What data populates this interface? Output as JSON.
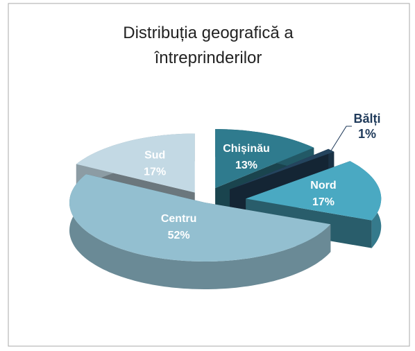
{
  "chart_data": {
    "type": "pie",
    "title": "Distribuția geografică a întreprinderilor",
    "categories": [
      "Chișinău",
      "Bălți",
      "Nord",
      "Centru",
      "Sud"
    ],
    "values": [
      13,
      1,
      17,
      52,
      17
    ],
    "value_labels": [
      "13%",
      "1%",
      "17%",
      "52%",
      "17%"
    ],
    "colors": [
      "#2f7b8e",
      "#24445e",
      "#4aa9c2",
      "#93bfd0",
      "#c3d9e4"
    ]
  }
}
